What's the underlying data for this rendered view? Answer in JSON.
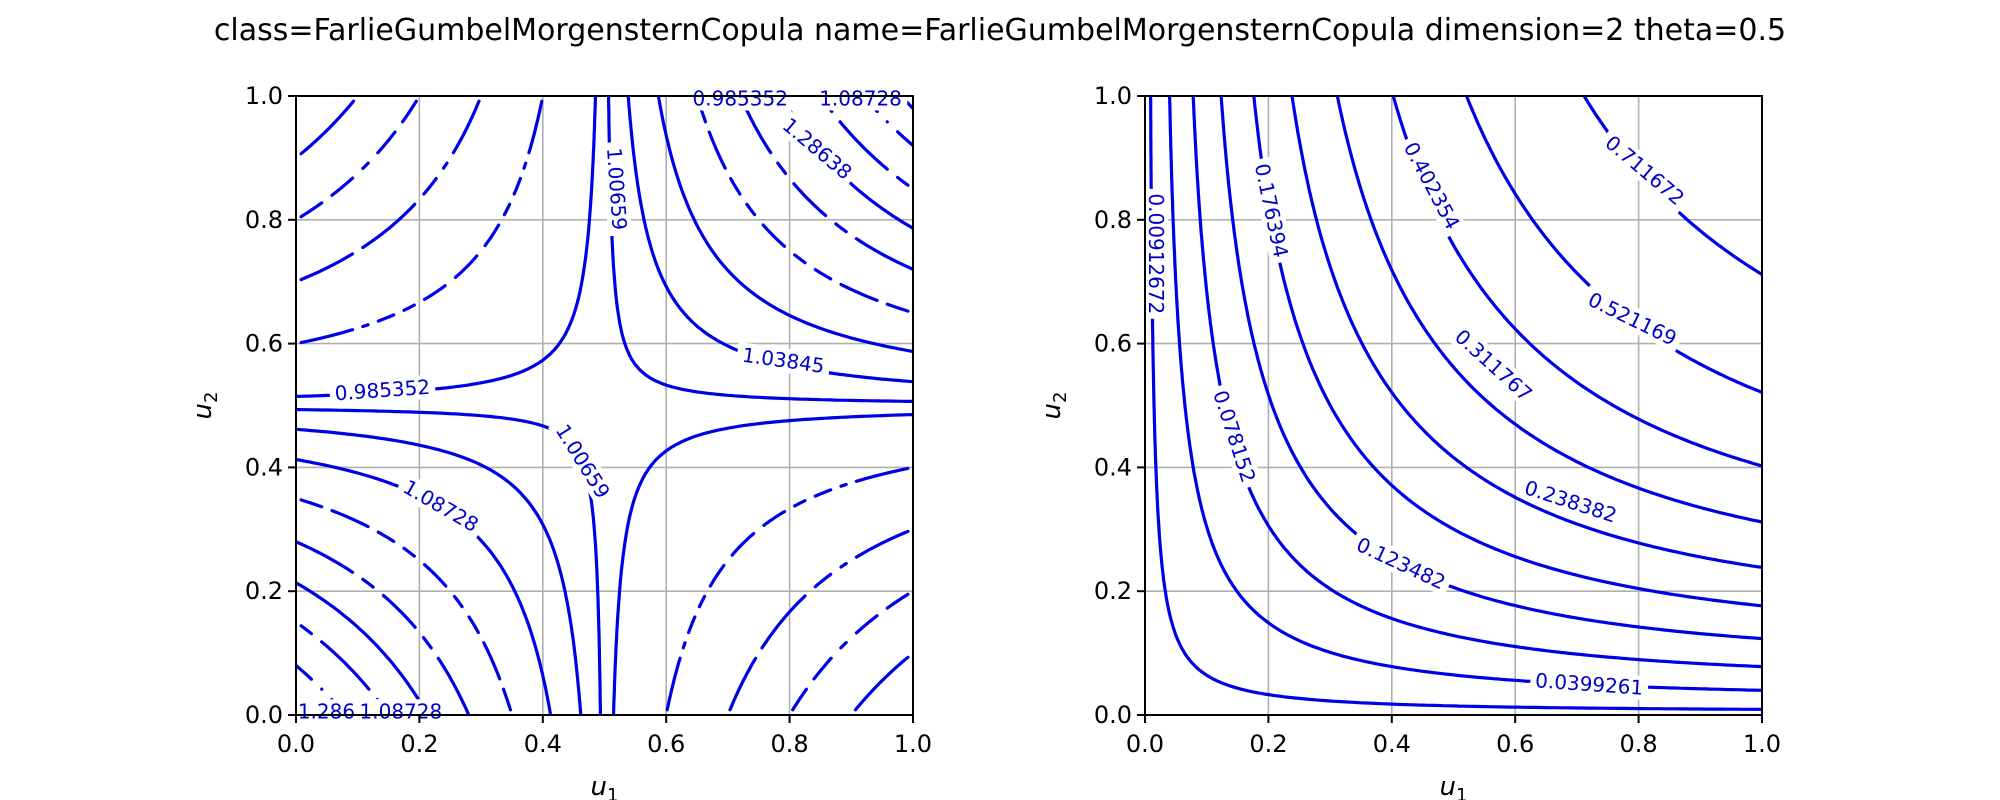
{
  "chart_data": [
    {
      "type": "contour",
      "title": "class=FarlieGumbelMorgensternCopula name=FarlieGumbelMorgensternCopula dimension=2 theta=0.5",
      "function": "pdf",
      "theta": 0.5,
      "xlabel": "u",
      "xlabel_sub": "1",
      "ylabel": "u",
      "ylabel_sub": "2",
      "xlim": [
        0.0,
        1.0
      ],
      "ylim": [
        0.0,
        1.0
      ],
      "xticks": [
        "0.0",
        "0.2",
        "0.4",
        "0.6",
        "0.8",
        "1.0"
      ],
      "yticks": [
        "0.0",
        "0.2",
        "0.4",
        "0.6",
        "0.8",
        "1.0"
      ],
      "grid": true,
      "line_color": "#0000e6",
      "levels": [
        0.5,
        0.6,
        0.7,
        0.8,
        0.9,
        0.985352,
        1.00659,
        1.03845,
        1.08728,
        1.15,
        1.22,
        1.28638,
        1.35,
        1.42,
        1.48
      ],
      "labels": [
        {
          "text": "0.985352",
          "u1": 0.14,
          "u2": 0.525,
          "angle": -4
        },
        {
          "text": "1.03845",
          "u1": 0.79,
          "u2": 0.573,
          "angle": 8
        },
        {
          "text": "1.00659",
          "u1": 0.52,
          "u2": 0.85,
          "angle": 86
        },
        {
          "text": "1.00659",
          "u1": 0.465,
          "u2": 0.41,
          "angle": 58
        },
        {
          "text": "1.08728",
          "u1": 0.235,
          "u2": 0.338,
          "angle": 30
        },
        {
          "text": "1.28638",
          "u1": 0.845,
          "u2": 0.915,
          "angle": 40
        },
        {
          "text": "1.08728",
          "u1": 0.915,
          "u2": 0.996,
          "angle": 0
        },
        {
          "text": "0.985352",
          "u1": 0.72,
          "u2": 0.996,
          "angle": 0
        },
        {
          "text": "1.28638",
          "u1": 0.07,
          "u2": 0.006,
          "angle": 0
        },
        {
          "text": "1.08728",
          "u1": 0.17,
          "u2": 0.006,
          "angle": 0
        }
      ]
    },
    {
      "type": "contour",
      "function": "cdf",
      "theta": 0.5,
      "xlabel": "u",
      "xlabel_sub": "1",
      "ylabel": "u",
      "ylabel_sub": "2",
      "xlim": [
        0.0,
        1.0
      ],
      "ylim": [
        0.0,
        1.0
      ],
      "xticks": [
        "0.0",
        "0.2",
        "0.4",
        "0.6",
        "0.8",
        "1.0"
      ],
      "yticks": [
        "0.0",
        "0.2",
        "0.4",
        "0.6",
        "0.8",
        "1.0"
      ],
      "grid": true,
      "line_color": "#0000e6",
      "levels": [
        0.00912672,
        0.0399261,
        0.078152,
        0.123482,
        0.176394,
        0.238382,
        0.311767,
        0.402354,
        0.521169,
        0.711672
      ],
      "labels": [
        {
          "text": "0.00912672",
          "u1": 0.018,
          "u2": 0.745,
          "angle": 90
        },
        {
          "text": "0.176394",
          "u1": 0.205,
          "u2": 0.815,
          "angle": 78
        },
        {
          "text": "0.402354",
          "u1": 0.465,
          "u2": 0.855,
          "angle": 62
        },
        {
          "text": "0.711672",
          "u1": 0.81,
          "u2": 0.88,
          "angle": 40
        },
        {
          "text": "0.078152",
          "u1": 0.145,
          "u2": 0.45,
          "angle": 72
        },
        {
          "text": "0.311767",
          "u1": 0.565,
          "u2": 0.565,
          "angle": 42
        },
        {
          "text": "0.521169",
          "u1": 0.79,
          "u2": 0.64,
          "angle": 26
        },
        {
          "text": "0.238382",
          "u1": 0.69,
          "u2": 0.345,
          "angle": 18
        },
        {
          "text": "0.123482",
          "u1": 0.415,
          "u2": 0.245,
          "angle": 25
        },
        {
          "text": "0.0399261",
          "u1": 0.72,
          "u2": 0.05,
          "angle": 4
        }
      ]
    }
  ]
}
